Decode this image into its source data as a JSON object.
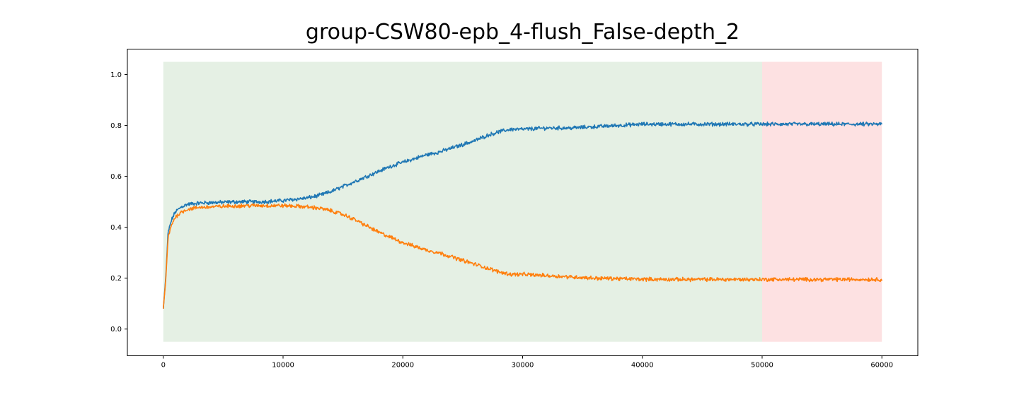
{
  "chart_data": {
    "type": "line",
    "title": "group-CSW80-epb_4-flush_False-depth_2",
    "xlabel": "",
    "ylabel": "",
    "xlim": [
      -3000,
      63000
    ],
    "ylim": [
      -0.105,
      1.1
    ],
    "x_ticks": [
      0,
      10000,
      20000,
      30000,
      40000,
      50000,
      60000
    ],
    "x_tick_labels": [
      "0",
      "10000",
      "20000",
      "30000",
      "40000",
      "50000",
      "60000"
    ],
    "y_ticks": [
      0.0,
      0.2,
      0.4,
      0.6,
      0.8,
      1.0
    ],
    "y_tick_labels": [
      "0.0",
      "0.2",
      "0.4",
      "0.6",
      "0.8",
      "1.0"
    ],
    "grid": false,
    "regions": [
      {
        "x_start": 0,
        "x_end": 50000,
        "y_start": -0.05,
        "y_end": 1.05,
        "color": "#e5f0e4"
      },
      {
        "x_start": 50000,
        "x_end": 60000,
        "y_start": -0.05,
        "y_end": 1.05,
        "color": "#fde1e2"
      }
    ],
    "series": [
      {
        "color": "#1f77b4",
        "x": [
          0,
          200,
          400,
          700,
          1000,
          1500,
          2000,
          3000,
          4000,
          5000,
          6000,
          7000,
          8000,
          9000,
          10000,
          11000,
          12000,
          13000,
          14000,
          15000,
          16000,
          17000,
          18000,
          19000,
          20000,
          21000,
          22000,
          23000,
          24000,
          25000,
          26000,
          27000,
          28000,
          29000,
          30000,
          32000,
          34000,
          36000,
          38000,
          40000,
          42000,
          44000,
          46000,
          48000,
          50000,
          52000,
          54000,
          56000,
          58000,
          60000
        ],
        "y": [
          0.08,
          0.2,
          0.38,
          0.43,
          0.46,
          0.48,
          0.49,
          0.495,
          0.497,
          0.498,
          0.5,
          0.5,
          0.5,
          0.502,
          0.505,
          0.51,
          0.515,
          0.525,
          0.54,
          0.56,
          0.58,
          0.6,
          0.62,
          0.64,
          0.655,
          0.67,
          0.685,
          0.695,
          0.71,
          0.725,
          0.74,
          0.76,
          0.775,
          0.785,
          0.785,
          0.79,
          0.79,
          0.795,
          0.8,
          0.805,
          0.805,
          0.805,
          0.805,
          0.805,
          0.805,
          0.805,
          0.805,
          0.805,
          0.805,
          0.805
        ],
        "noise": 0.006
      },
      {
        "color": "#ff7f0e",
        "x": [
          0,
          200,
          400,
          700,
          1000,
          1500,
          2000,
          3000,
          4000,
          5000,
          6000,
          7000,
          8000,
          9000,
          10000,
          11000,
          12000,
          13000,
          14000,
          15000,
          16000,
          17000,
          18000,
          19000,
          20000,
          21000,
          22000,
          23000,
          24000,
          25000,
          26000,
          27000,
          28000,
          29000,
          30000,
          32000,
          34000,
          36000,
          38000,
          40000,
          42000,
          44000,
          46000,
          48000,
          50000,
          52000,
          54000,
          56000,
          58000,
          60000
        ],
        "y": [
          0.08,
          0.19,
          0.36,
          0.41,
          0.44,
          0.46,
          0.47,
          0.478,
          0.48,
          0.482,
          0.484,
          0.485,
          0.485,
          0.485,
          0.485,
          0.483,
          0.48,
          0.475,
          0.465,
          0.45,
          0.43,
          0.405,
          0.38,
          0.36,
          0.34,
          0.325,
          0.31,
          0.3,
          0.285,
          0.27,
          0.255,
          0.24,
          0.225,
          0.215,
          0.215,
          0.21,
          0.205,
          0.2,
          0.198,
          0.196,
          0.195,
          0.195,
          0.195,
          0.195,
          0.195,
          0.195,
          0.195,
          0.195,
          0.195,
          0.195
        ],
        "noise": 0.006
      }
    ]
  }
}
